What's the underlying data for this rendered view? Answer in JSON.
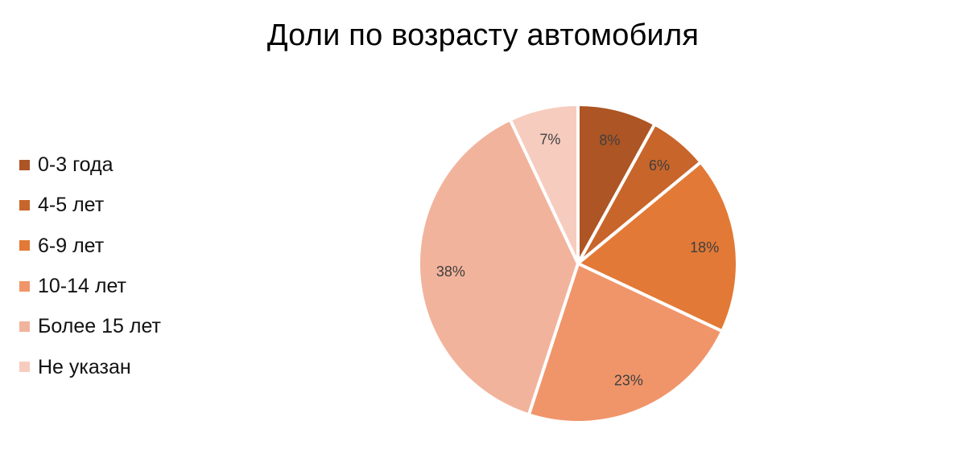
{
  "chart_data": {
    "type": "pie",
    "title": "Доли по возрасту автомобиля",
    "categories": [
      "0-3 года",
      "4-5 лет",
      "6-9 лет",
      "10-14 лет",
      "Более 15 лет",
      "Не указан"
    ],
    "values": [
      8,
      6,
      18,
      23,
      38,
      7
    ],
    "data_labels": [
      "8%",
      "6%",
      "18%",
      "23%",
      "38%",
      "7%"
    ],
    "colors": [
      "#AD5524",
      "#C8652B",
      "#E27936",
      "#F0956A",
      "#F2B39C",
      "#F6CCBF"
    ],
    "legend_position": "left",
    "start_angle": "top, clockwise"
  }
}
